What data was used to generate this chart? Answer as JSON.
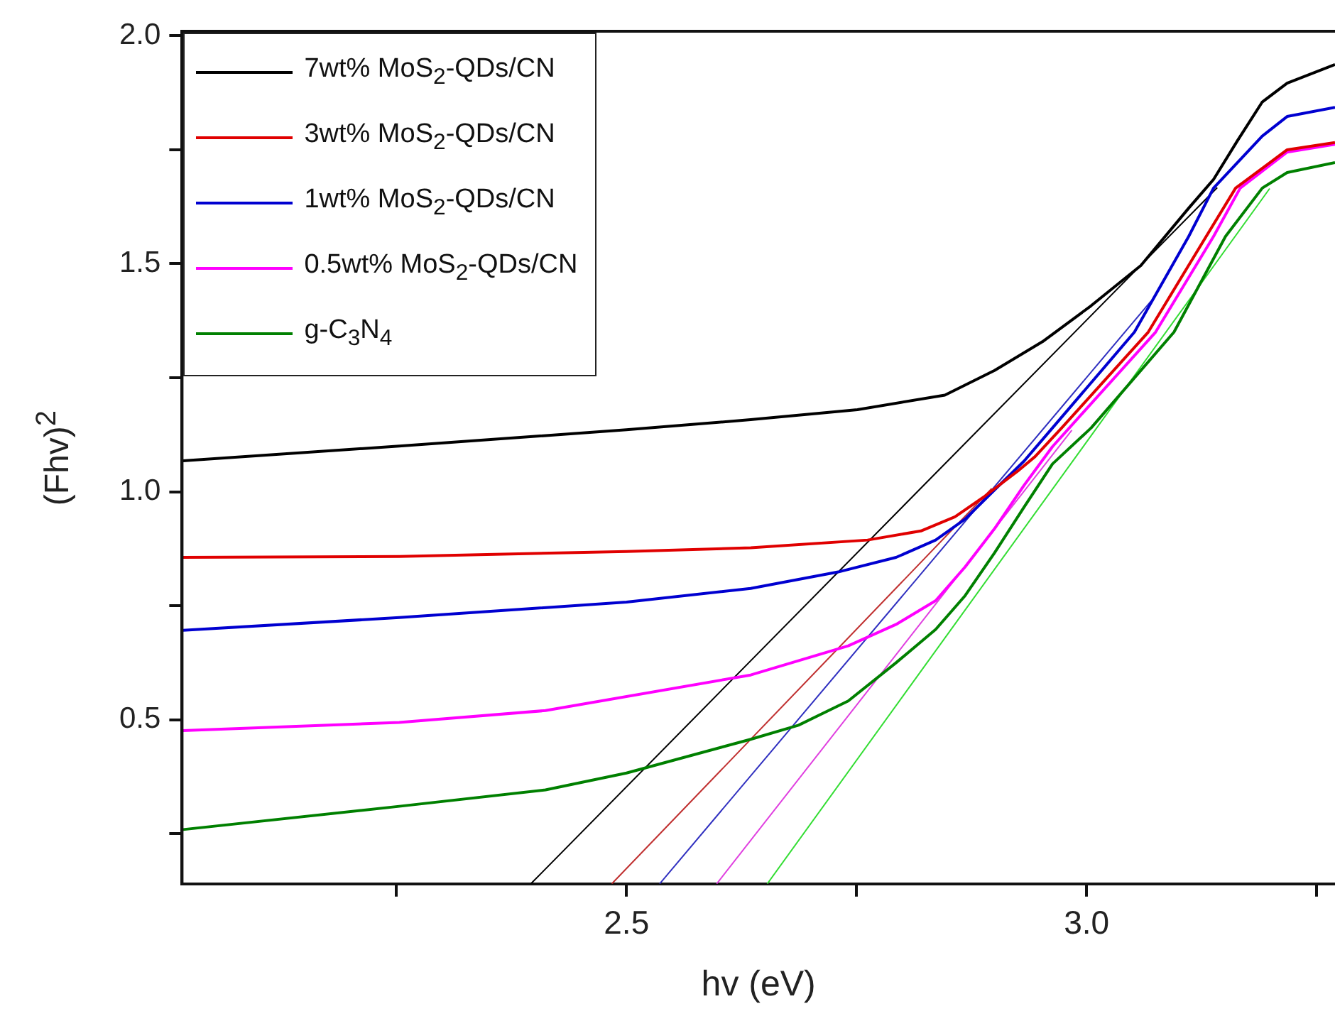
{
  "chart_data": {
    "type": "line",
    "xlabel": "hv (eV)",
    "ylabel": "(Fhv)$^{2}$",
    "xlim": [
      2.017,
      3.27
    ],
    "xticks": [
      {
        "value": 2.25,
        "label": null
      },
      {
        "value": 2.5,
        "label": "2.5"
      },
      {
        "value": 2.75,
        "label": null
      },
      {
        "value": 3.0,
        "label": "3.0"
      },
      {
        "value": 3.25,
        "label": null
      }
    ],
    "ylim": [
      0.14,
      2.01
    ],
    "yticks": [
      {
        "value": 0.25,
        "label": null
      },
      {
        "value": 0.5,
        "label": "0.5"
      },
      {
        "value": 0.75,
        "label": null
      },
      {
        "value": 1.0,
        "label": "1.0"
      },
      {
        "value": 1.25,
        "label": null
      },
      {
        "value": 1.5,
        "label": "1.5"
      },
      {
        "value": 1.75,
        "label": null
      },
      {
        "value": 2.0,
        "label": "2.0"
      }
    ],
    "legend": "top left",
    "marker": "none",
    "grid": false,
    "series": [
      {
        "name": "7wt% MoS$_{2}$-QDs/CN",
        "color": "#000000",
        "x": [
          2.018,
          2.253,
          2.5,
          2.635,
          2.751,
          2.846,
          2.9,
          2.952,
          3.005,
          3.059,
          3.111,
          3.138,
          3.164,
          3.191,
          3.218,
          3.27
        ],
        "values": [
          1.068,
          1.1,
          1.136,
          1.158,
          1.18,
          1.212,
          1.266,
          1.329,
          1.408,
          1.496,
          1.622,
          1.685,
          1.77,
          1.855,
          1.896,
          1.937
        ]
      },
      {
        "name": "3wt% MoS$_{2}$-QDs/CN",
        "color": "#e00000",
        "x": [
          2.018,
          2.253,
          2.5,
          2.635,
          2.762,
          2.82,
          2.857,
          2.888,
          2.925,
          2.944,
          2.973,
          3.067,
          3.13,
          3.162,
          3.218,
          3.27
        ],
        "values": [
          0.856,
          0.858,
          0.869,
          0.877,
          0.894,
          0.914,
          0.945,
          0.988,
          1.045,
          1.077,
          1.14,
          1.35,
          1.56,
          1.666,
          1.75,
          1.766
        ]
      },
      {
        "name": "1wt% MoS$_{2}$-QDs/CN",
        "color": "#0000d0",
        "x": [
          2.018,
          2.253,
          2.5,
          2.635,
          2.73,
          2.793,
          2.836,
          2.868,
          2.9,
          2.932,
          2.963,
          3.052,
          3.111,
          3.138,
          3.191,
          3.218,
          3.27
        ],
        "values": [
          0.696,
          0.724,
          0.758,
          0.788,
          0.824,
          0.856,
          0.894,
          0.94,
          1.004,
          1.067,
          1.14,
          1.35,
          1.56,
          1.666,
          1.78,
          1.823,
          1.843
        ]
      },
      {
        "name": "0.5wt% MoS$_{2}$-QDs/CN",
        "color": "#ff00ff",
        "x": [
          2.018,
          2.253,
          2.412,
          2.635,
          2.741,
          2.793,
          2.836,
          2.868,
          2.9,
          2.932,
          2.963,
          3.075,
          3.138,
          3.167,
          3.218,
          3.27
        ],
        "values": [
          0.476,
          0.494,
          0.52,
          0.598,
          0.662,
          0.709,
          0.761,
          0.835,
          0.919,
          1.014,
          1.099,
          1.35,
          1.56,
          1.666,
          1.745,
          1.762
        ]
      },
      {
        "name": "g-C$_{3}$N$_{4}$",
        "color": "#008000",
        "x": [
          2.018,
          2.253,
          2.412,
          2.5,
          2.635,
          2.687,
          2.741,
          2.793,
          2.836,
          2.868,
          2.9,
          2.932,
          2.963,
          3.005,
          3.095,
          3.151,
          3.191,
          3.218,
          3.27
        ],
        "values": [
          0.259,
          0.31,
          0.346,
          0.383,
          0.457,
          0.488,
          0.541,
          0.625,
          0.698,
          0.772,
          0.866,
          0.966,
          1.061,
          1.14,
          1.35,
          1.56,
          1.666,
          1.7,
          1.722
        ]
      },
      {
        "type": "line",
        "color": "#000000",
        "x": [
          2.396,
          3.142
        ],
        "values": [
          0.14,
          1.667
        ]
      },
      {
        "type": "line",
        "color": "#c03030",
        "x": [
          2.484,
          2.897
        ],
        "values": [
          0.14,
          1.007
        ]
      },
      {
        "type": "line",
        "color": "#3030c0",
        "x": [
          2.536,
          3.07
        ],
        "values": [
          0.14,
          1.418
        ]
      },
      {
        "type": "line",
        "color": "#e040e0",
        "x": [
          2.598,
          2.984
        ],
        "values": [
          0.14,
          1.135
        ]
      },
      {
        "type": "line",
        "color": "#33dd33",
        "x": [
          2.653,
          3.199
        ],
        "values": [
          0.14,
          1.665
        ]
      }
    ]
  }
}
